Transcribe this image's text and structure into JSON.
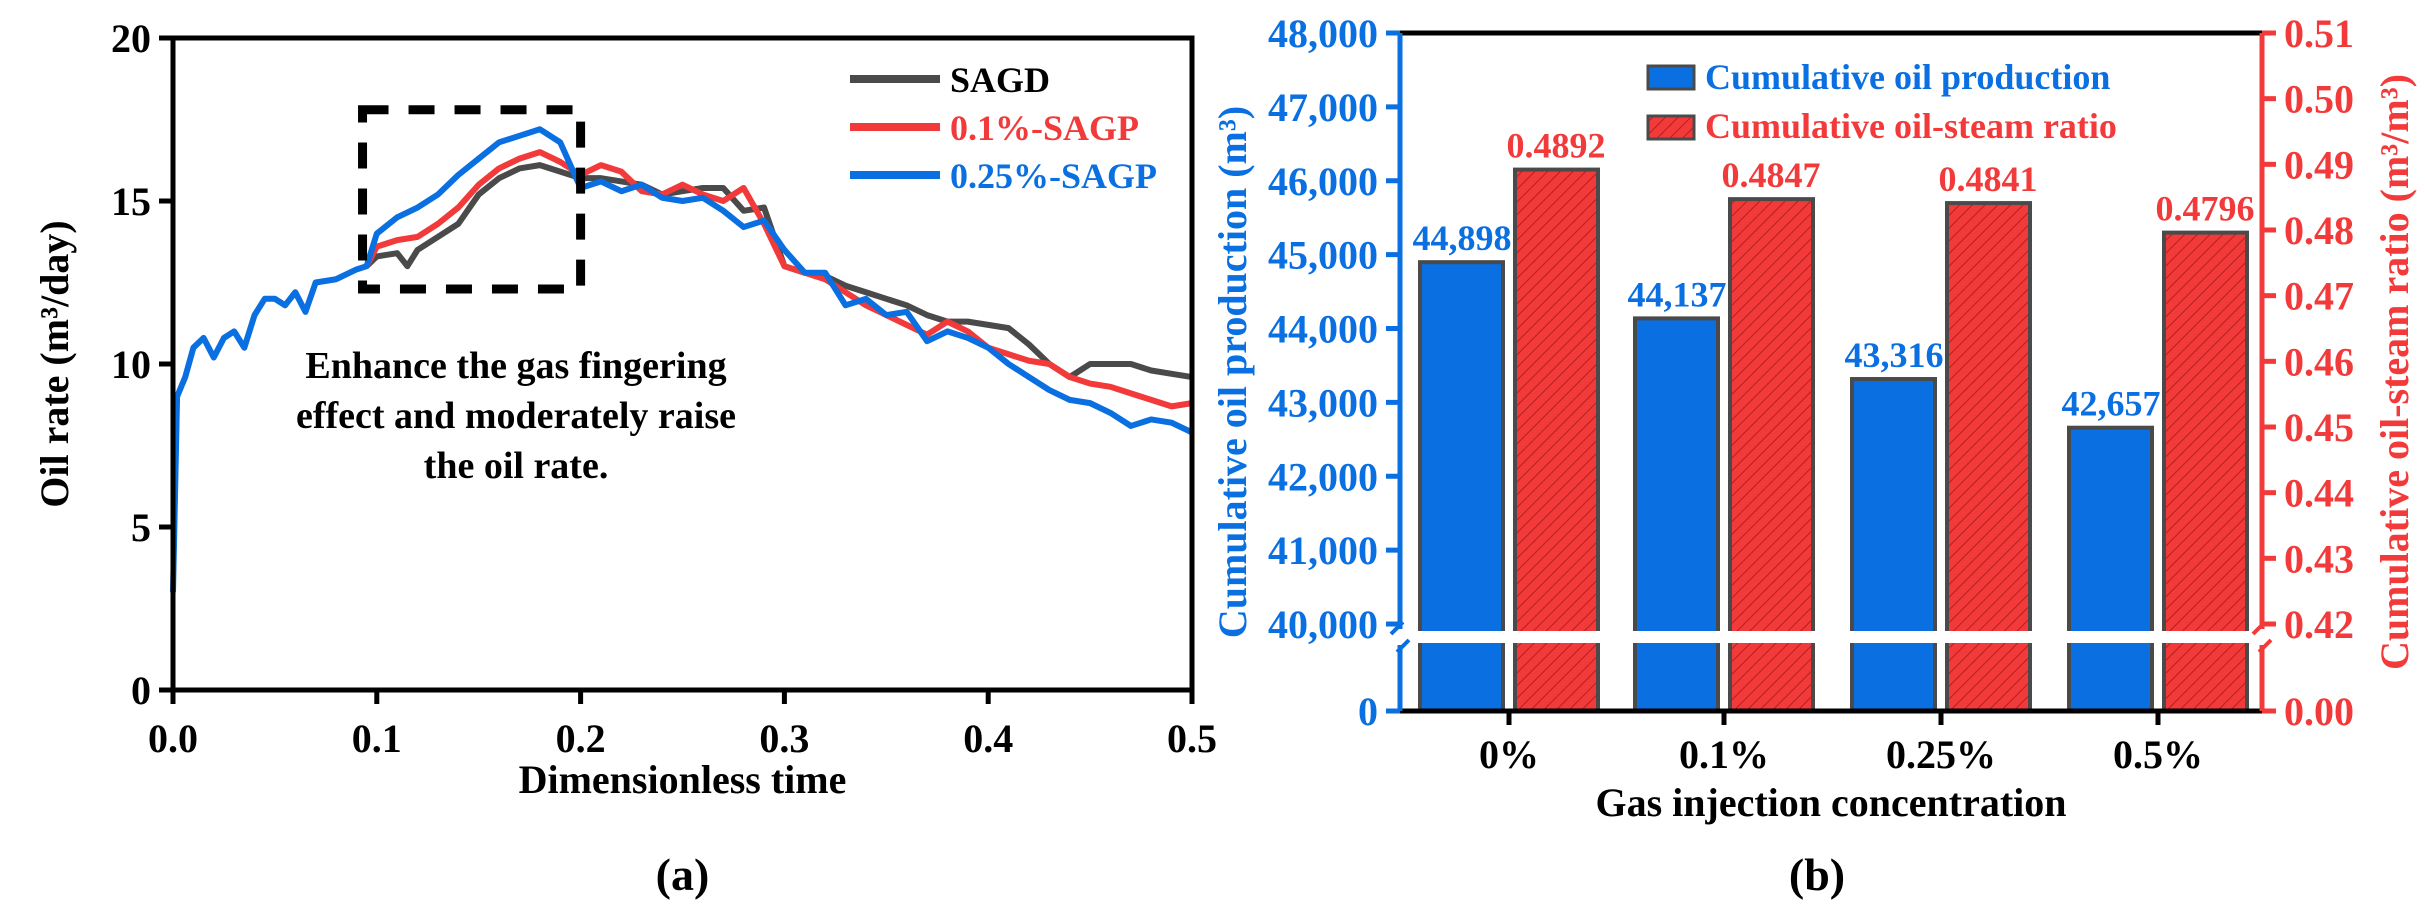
{
  "colors": {
    "blue": "#0a6fe0",
    "red": "#f23a3a",
    "gray": "#4a4a4a",
    "axis": "#000000",
    "hatch": "#b51f1f"
  },
  "chart_data": [
    {
      "type": "line",
      "panel_label": "(a)",
      "xlabel": "Dimensionless time",
      "ylabel": "Oil rate (m³/day)",
      "xlim": [
        0,
        0.5
      ],
      "ylim": [
        0,
        20
      ],
      "xticks": [
        "0.0",
        "0.1",
        "0.2",
        "0.3",
        "0.4",
        "0.5"
      ],
      "yticks": [
        "0",
        "5",
        "10",
        "15",
        "20"
      ],
      "legend_position": "top-right",
      "annotation": [
        "Enhance the gas fingering",
        "effect and moderately raise",
        "the oil rate."
      ],
      "highlight_box": {
        "x": [
          0.093,
          0.2
        ],
        "y": [
          12.3,
          17.8
        ]
      },
      "shared_early": [
        [
          0,
          3
        ],
        [
          0.002,
          9
        ],
        [
          0.006,
          9.6
        ],
        [
          0.01,
          10.5
        ],
        [
          0.015,
          10.8
        ],
        [
          0.02,
          10.2
        ],
        [
          0.025,
          10.8
        ],
        [
          0.03,
          11
        ],
        [
          0.035,
          10.5
        ],
        [
          0.04,
          11.5
        ],
        [
          0.045,
          12
        ],
        [
          0.05,
          12
        ],
        [
          0.055,
          11.8
        ],
        [
          0.06,
          12.2
        ],
        [
          0.065,
          11.6
        ],
        [
          0.07,
          12.5
        ],
        [
          0.08,
          12.6
        ],
        [
          0.09,
          12.9
        ],
        [
          0.095,
          13
        ]
      ],
      "series": [
        {
          "name": "SAGD",
          "color": "#4a4a4a",
          "points": [
            [
              0.095,
              13
            ],
            [
              0.1,
              13.3
            ],
            [
              0.11,
              13.4
            ],
            [
              0.115,
              13.0
            ],
            [
              0.12,
              13.5
            ],
            [
              0.13,
              13.9
            ],
            [
              0.14,
              14.3
            ],
            [
              0.15,
              15.2
            ],
            [
              0.16,
              15.7
            ],
            [
              0.17,
              16.0
            ],
            [
              0.18,
              16.1
            ],
            [
              0.19,
              15.9
            ],
            [
              0.2,
              15.7
            ],
            [
              0.21,
              15.7
            ],
            [
              0.22,
              15.6
            ],
            [
              0.23,
              15.5
            ],
            [
              0.24,
              15.2
            ],
            [
              0.25,
              15.3
            ],
            [
              0.26,
              15.4
            ],
            [
              0.27,
              15.4
            ],
            [
              0.28,
              14.7
            ],
            [
              0.29,
              14.8
            ],
            [
              0.3,
              13.0
            ],
            [
              0.31,
              12.8
            ],
            [
              0.32,
              12.7
            ],
            [
              0.33,
              12.4
            ],
            [
              0.34,
              12.2
            ],
            [
              0.35,
              12.0
            ],
            [
              0.36,
              11.8
            ],
            [
              0.37,
              11.5
            ],
            [
              0.38,
              11.3
            ],
            [
              0.39,
              11.3
            ],
            [
              0.4,
              11.2
            ],
            [
              0.41,
              11.1
            ],
            [
              0.42,
              10.6
            ],
            [
              0.43,
              10.0
            ],
            [
              0.44,
              9.6
            ],
            [
              0.45,
              10.0
            ],
            [
              0.46,
              10.0
            ],
            [
              0.47,
              10.0
            ],
            [
              0.48,
              9.8
            ],
            [
              0.49,
              9.7
            ],
            [
              0.5,
              9.6
            ]
          ]
        },
        {
          "name": "0.1%-SAGP",
          "color": "#f23a3a",
          "points": [
            [
              0.095,
              13
            ],
            [
              0.1,
              13.6
            ],
            [
              0.11,
              13.8
            ],
            [
              0.12,
              13.9
            ],
            [
              0.13,
              14.3
            ],
            [
              0.14,
              14.8
            ],
            [
              0.15,
              15.5
            ],
            [
              0.16,
              16.0
            ],
            [
              0.17,
              16.3
            ],
            [
              0.18,
              16.5
            ],
            [
              0.19,
              16.2
            ],
            [
              0.2,
              15.8
            ],
            [
              0.21,
              16.1
            ],
            [
              0.22,
              15.9
            ],
            [
              0.23,
              15.3
            ],
            [
              0.24,
              15.2
            ],
            [
              0.25,
              15.5
            ],
            [
              0.26,
              15.2
            ],
            [
              0.27,
              15.0
            ],
            [
              0.28,
              15.4
            ],
            [
              0.29,
              14.3
            ],
            [
              0.3,
              13.0
            ],
            [
              0.31,
              12.8
            ],
            [
              0.32,
              12.6
            ],
            [
              0.33,
              12.2
            ],
            [
              0.34,
              11.8
            ],
            [
              0.35,
              11.5
            ],
            [
              0.36,
              11.2
            ],
            [
              0.37,
              10.9
            ],
            [
              0.38,
              11.3
            ],
            [
              0.39,
              11.0
            ],
            [
              0.4,
              10.5
            ],
            [
              0.41,
              10.3
            ],
            [
              0.42,
              10.1
            ],
            [
              0.43,
              10.0
            ],
            [
              0.44,
              9.6
            ],
            [
              0.45,
              9.4
            ],
            [
              0.46,
              9.3
            ],
            [
              0.47,
              9.1
            ],
            [
              0.48,
              8.9
            ],
            [
              0.49,
              8.7
            ],
            [
              0.5,
              8.8
            ]
          ]
        },
        {
          "name": "0.25%-SAGP",
          "color": "#0a6fe0",
          "points": [
            [
              0.095,
              13
            ],
            [
              0.1,
              14.0
            ],
            [
              0.11,
              14.5
            ],
            [
              0.12,
              14.8
            ],
            [
              0.13,
              15.2
            ],
            [
              0.14,
              15.8
            ],
            [
              0.15,
              16.3
            ],
            [
              0.16,
              16.8
            ],
            [
              0.17,
              17.0
            ],
            [
              0.18,
              17.2
            ],
            [
              0.19,
              16.8
            ],
            [
              0.2,
              15.4
            ],
            [
              0.21,
              15.6
            ],
            [
              0.22,
              15.3
            ],
            [
              0.23,
              15.5
            ],
            [
              0.24,
              15.1
            ],
            [
              0.25,
              15.0
            ],
            [
              0.26,
              15.1
            ],
            [
              0.27,
              14.7
            ],
            [
              0.28,
              14.2
            ],
            [
              0.29,
              14.4
            ],
            [
              0.3,
              13.5
            ],
            [
              0.31,
              12.8
            ],
            [
              0.32,
              12.8
            ],
            [
              0.33,
              11.8
            ],
            [
              0.34,
              12.0
            ],
            [
              0.35,
              11.5
            ],
            [
              0.36,
              11.6
            ],
            [
              0.37,
              10.7
            ],
            [
              0.38,
              11.0
            ],
            [
              0.39,
              10.8
            ],
            [
              0.4,
              10.5
            ],
            [
              0.41,
              10.0
            ],
            [
              0.42,
              9.6
            ],
            [
              0.43,
              9.2
            ],
            [
              0.44,
              8.9
            ],
            [
              0.45,
              8.8
            ],
            [
              0.46,
              8.5
            ],
            [
              0.47,
              8.1
            ],
            [
              0.48,
              8.3
            ],
            [
              0.49,
              8.2
            ],
            [
              0.5,
              7.9
            ]
          ]
        }
      ]
    },
    {
      "type": "bar",
      "panel_label": "(b)",
      "xlabel": "Gas injection concentration",
      "ylabel_left": "Cumulative oil production (m³)",
      "ylabel_right": "Cumulative oil-steam ratio (m³/m³)",
      "categories": [
        "0%",
        "0.1%",
        "0.25%",
        "0.5%"
      ],
      "ylim_left": [
        0,
        48000
      ],
      "ylim_left_break": [
        0,
        40000
      ],
      "ylim_right": [
        0,
        0.51
      ],
      "ylim_right_break": [
        0,
        0.42
      ],
      "yticks_left": [
        "0",
        "40,000",
        "41,000",
        "42,000",
        "43,000",
        "44,000",
        "45,000",
        "46,000",
        "47,000",
        "48,000"
      ],
      "yticks_right": [
        "0.00",
        "0.42",
        "0.43",
        "0.44",
        "0.45",
        "0.46",
        "0.47",
        "0.48",
        "0.49",
        "0.50",
        "0.51"
      ],
      "legend_position": "top-center",
      "series": [
        {
          "name": "Cumulative oil production",
          "axis": "left",
          "values": [
            44898,
            44137,
            43316,
            42657
          ],
          "labels": [
            "44,898",
            "44,137",
            "43,316",
            "42,657"
          ]
        },
        {
          "name": "Cumulative oil-steam ratio",
          "axis": "right",
          "values": [
            0.4892,
            0.4847,
            0.4841,
            0.4796
          ],
          "labels": [
            "0.4892",
            "0.4847",
            "0.4841",
            "0.4796"
          ]
        }
      ]
    }
  ]
}
